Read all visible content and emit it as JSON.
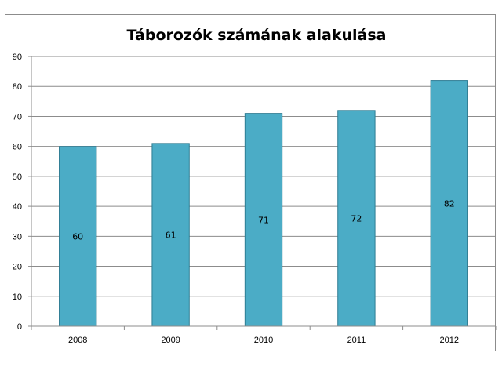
{
  "chart_data": {
    "type": "bar",
    "title": "Táborozók számának alakulása",
    "xlabel": "",
    "ylabel": "",
    "categories": [
      "2008",
      "2009",
      "2010",
      "2011",
      "2012"
    ],
    "values": [
      60,
      61,
      71,
      72,
      82
    ],
    "data_labels": [
      "60",
      "61",
      "71",
      "72",
      "82"
    ],
    "ylim": [
      0,
      90
    ],
    "y_ticks": [
      0,
      10,
      20,
      30,
      40,
      50,
      60,
      70,
      80,
      90
    ],
    "grid": true,
    "legend": "none",
    "bar_color": "#4BACC6",
    "bar_edge_color": "#2E7D94",
    "grid_color": "#8C8C8C"
  }
}
